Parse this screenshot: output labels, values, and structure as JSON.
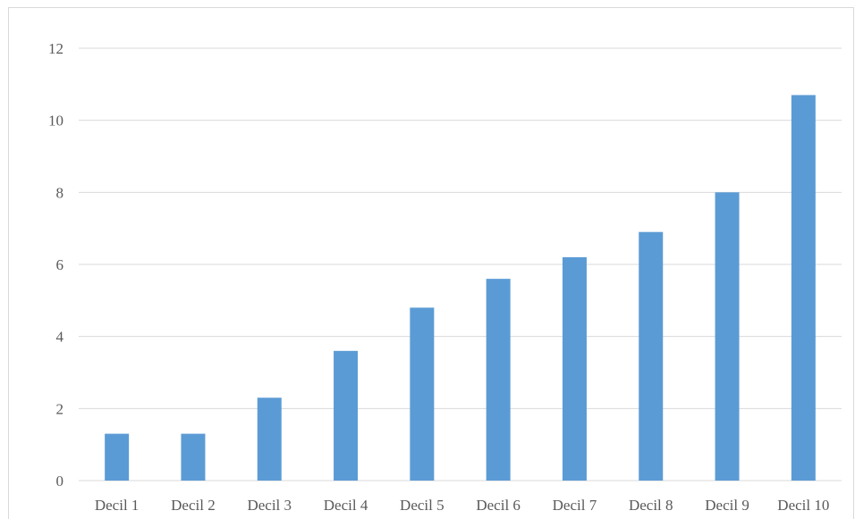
{
  "chart_data": {
    "type": "bar",
    "title": "",
    "xlabel": "",
    "ylabel": "",
    "categories": [
      "Decil 1",
      "Decil 2",
      "Decil 3",
      "Decil 4",
      "Decil 5",
      "Decil 6",
      "Decil 7",
      "Decil 8",
      "Decil 9",
      "Decil 10"
    ],
    "values": [
      1.3,
      1.3,
      2.3,
      3.6,
      4.8,
      5.6,
      6.2,
      6.9,
      8.0,
      10.7
    ],
    "ylim": [
      0,
      12
    ],
    "yticks": [
      "0",
      "2",
      "4",
      "6",
      "8",
      "10",
      "12"
    ],
    "grid": true,
    "legend": "none",
    "colors": {
      "bar": "#5b9bd5",
      "grid": "#d9d9d9",
      "text": "#595959"
    }
  }
}
